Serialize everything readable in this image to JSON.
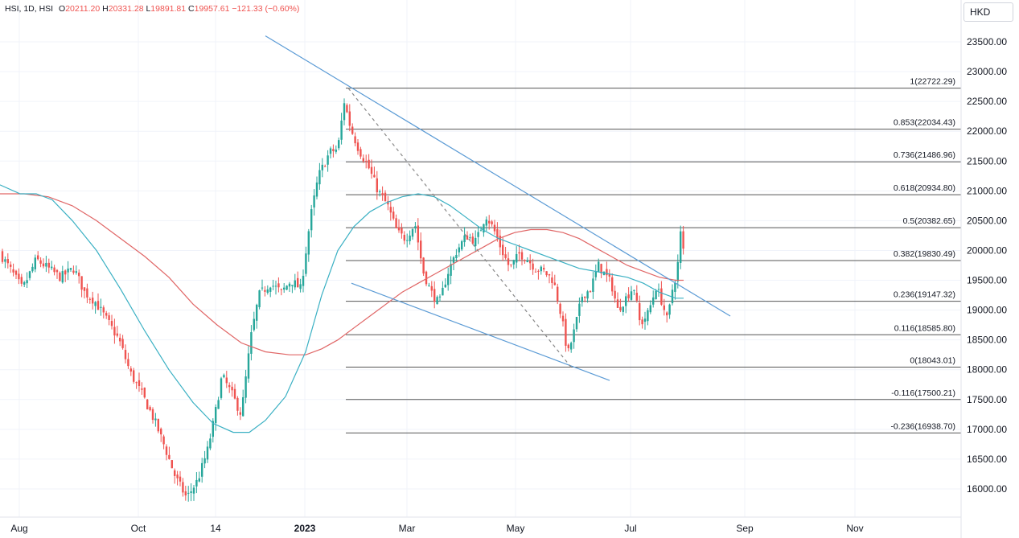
{
  "header": {
    "symbol": "HSI, 1D, HSI",
    "open_label": "O",
    "open": "20211.20",
    "high_label": "H",
    "high": "20331.28",
    "low_label": "L",
    "low": "19891.81",
    "close_label": "C",
    "close": "19957.61",
    "change": "−121.33 (−0.60%)"
  },
  "currency": "HKD",
  "colors": {
    "up": "#26a69a",
    "down": "#ef5350",
    "trend": "#5b9bd5",
    "ma_fast": "#3ab0c3",
    "ma_slow": "#e06666",
    "fib": "#555555",
    "grid": "#f0f3fa"
  },
  "chart_data": {
    "type": "candlestick",
    "ylim": [
      15600,
      23900
    ],
    "y_ticks": [
      "23500.00",
      "23000.00",
      "22500.00",
      "22000.00",
      "21500.00",
      "21000.00",
      "20500.00",
      "20000.00",
      "19500.00",
      "19000.00",
      "18500.00",
      "18000.00",
      "17500.00",
      "17000.00",
      "16500.00",
      "16000.00"
    ],
    "x_ticks": [
      {
        "label": "Aug",
        "x": 24,
        "bold": false
      },
      {
        "label": "Oct",
        "x": 172,
        "bold": false
      },
      {
        "label": "14",
        "x": 268,
        "bold": false
      },
      {
        "label": "2023",
        "x": 379,
        "bold": true
      },
      {
        "label": "Mar",
        "x": 506,
        "bold": false
      },
      {
        "label": "May",
        "x": 641,
        "bold": false
      },
      {
        "label": "Jul",
        "x": 784,
        "bold": false
      },
      {
        "label": "Sep",
        "x": 926,
        "bold": false
      },
      {
        "label": "Nov",
        "x": 1063,
        "bold": false
      }
    ],
    "fib_levels": [
      {
        "label": "1(22722.29)",
        "value": 22722.29
      },
      {
        "label": "0.853(22034.43)",
        "value": 22034.43
      },
      {
        "label": "0.736(21486.96)",
        "value": 21486.96
      },
      {
        "label": "0.618(20934.80)",
        "value": 20934.8
      },
      {
        "label": "0.5(20382.65)",
        "value": 20382.65
      },
      {
        "label": "0.382(19830.49)",
        "value": 19830.49
      },
      {
        "label": "0.236(19147.32)",
        "value": 19147.32
      },
      {
        "label": "0.116(18585.80)",
        "value": 18585.8
      },
      {
        "label": "0(18043.01)",
        "value": 18043.01
      },
      {
        "label": "-0.116(17500.21)",
        "value": 17500.21
      },
      {
        "label": "-0.236(16938.70)",
        "value": 16938.7
      }
    ],
    "close_path": [
      [
        0,
        19950
      ],
      [
        12,
        19700
      ],
      [
        28,
        19350
      ],
      [
        45,
        19850
      ],
      [
        60,
        19700
      ],
      [
        75,
        19550
      ],
      [
        92,
        19700
      ],
      [
        105,
        19300
      ],
      [
        118,
        19150
      ],
      [
        132,
        18850
      ],
      [
        148,
        18500
      ],
      [
        162,
        17950
      ],
      [
        178,
        17550
      ],
      [
        192,
        17150
      ],
      [
        205,
        16700
      ],
      [
        218,
        16200
      ],
      [
        232,
        15850
      ],
      [
        246,
        16150
      ],
      [
        258,
        16650
      ],
      [
        266,
        17150
      ],
      [
        276,
        17900
      ],
      [
        288,
        17600
      ],
      [
        300,
        17250
      ],
      [
        312,
        18550
      ],
      [
        322,
        19250
      ],
      [
        336,
        19450
      ],
      [
        350,
        19300
      ],
      [
        362,
        19500
      ],
      [
        374,
        19350
      ],
      [
        386,
        20550
      ],
      [
        396,
        21250
      ],
      [
        410,
        21650
      ],
      [
        420,
        21700
      ],
      [
        428,
        22500
      ],
      [
        436,
        22050
      ],
      [
        446,
        21700
      ],
      [
        458,
        21400
      ],
      [
        470,
        21000
      ],
      [
        482,
        20750
      ],
      [
        494,
        20300
      ],
      [
        504,
        20200
      ],
      [
        516,
        20450
      ],
      [
        526,
        19650
      ],
      [
        536,
        19300
      ],
      [
        546,
        19100
      ],
      [
        556,
        19600
      ],
      [
        568,
        20000
      ],
      [
        580,
        20250
      ],
      [
        592,
        20150
      ],
      [
        604,
        20600
      ],
      [
        614,
        20350
      ],
      [
        624,
        20000
      ],
      [
        634,
        19700
      ],
      [
        646,
        19950
      ],
      [
        656,
        19850
      ],
      [
        666,
        19700
      ],
      [
        676,
        19650
      ],
      [
        688,
        19500
      ],
      [
        698,
        18900
      ],
      [
        706,
        18250
      ],
      [
        714,
        18650
      ],
      [
        724,
        19250
      ],
      [
        734,
        19350
      ],
      [
        744,
        19750
      ],
      [
        752,
        19600
      ],
      [
        760,
        19450
      ],
      [
        768,
        19000
      ],
      [
        778,
        19200
      ],
      [
        788,
        19400
      ],
      [
        796,
        18750
      ],
      [
        806,
        18950
      ],
      [
        816,
        19400
      ],
      [
        824,
        19100
      ],
      [
        830,
        18800
      ],
      [
        836,
        19350
      ],
      [
        842,
        19650
      ],
      [
        846,
        20300
      ],
      [
        850,
        19960
      ]
    ],
    "ma_fast": [
      [
        0,
        21100
      ],
      [
        25,
        20950
      ],
      [
        45,
        20950
      ],
      [
        65,
        20850
      ],
      [
        90,
        20500
      ],
      [
        120,
        20000
      ],
      [
        150,
        19350
      ],
      [
        180,
        18650
      ],
      [
        210,
        18000
      ],
      [
        240,
        17450
      ],
      [
        265,
        17100
      ],
      [
        290,
        16950
      ],
      [
        310,
        16950
      ],
      [
        330,
        17150
      ],
      [
        355,
        17550
      ],
      [
        380,
        18300
      ],
      [
        400,
        19250
      ],
      [
        420,
        20000
      ],
      [
        440,
        20400
      ],
      [
        460,
        20650
      ],
      [
        480,
        20800
      ],
      [
        500,
        20900
      ],
      [
        520,
        20950
      ],
      [
        540,
        20900
      ],
      [
        560,
        20750
      ],
      [
        580,
        20550
      ],
      [
        600,
        20350
      ],
      [
        620,
        20200
      ],
      [
        640,
        20100
      ],
      [
        660,
        20000
      ],
      [
        680,
        19900
      ],
      [
        700,
        19800
      ],
      [
        720,
        19700
      ],
      [
        740,
        19650
      ],
      [
        760,
        19600
      ],
      [
        780,
        19550
      ],
      [
        800,
        19450
      ],
      [
        820,
        19300
      ],
      [
        840,
        19200
      ],
      [
        850,
        19200
      ]
    ],
    "ma_slow": [
      [
        0,
        20950
      ],
      [
        30,
        20950
      ],
      [
        60,
        20900
      ],
      [
        90,
        20750
      ],
      [
        120,
        20500
      ],
      [
        150,
        20200
      ],
      [
        180,
        19900
      ],
      [
        210,
        19550
      ],
      [
        240,
        19100
      ],
      [
        270,
        18750
      ],
      [
        300,
        18450
      ],
      [
        330,
        18300
      ],
      [
        360,
        18250
      ],
      [
        380,
        18250
      ],
      [
        400,
        18350
      ],
      [
        420,
        18500
      ],
      [
        440,
        18700
      ],
      [
        460,
        18900
      ],
      [
        480,
        19100
      ],
      [
        500,
        19300
      ],
      [
        520,
        19450
      ],
      [
        540,
        19600
      ],
      [
        560,
        19750
      ],
      [
        580,
        19900
      ],
      [
        600,
        20050
      ],
      [
        620,
        20200
      ],
      [
        640,
        20300
      ],
      [
        660,
        20350
      ],
      [
        680,
        20350
      ],
      [
        700,
        20300
      ],
      [
        720,
        20200
      ],
      [
        740,
        20050
      ],
      [
        760,
        19900
      ],
      [
        780,
        19750
      ],
      [
        800,
        19650
      ],
      [
        820,
        19550
      ],
      [
        840,
        19500
      ],
      [
        850,
        19500
      ]
    ],
    "trendlines": [
      {
        "name": "upper",
        "points": [
          [
            330,
            23600
          ],
          [
            908,
            18900
          ]
        ],
        "style": "solid"
      },
      {
        "name": "lower",
        "points": [
          [
            437,
            19450
          ],
          [
            758,
            17820
          ]
        ],
        "style": "solid"
      },
      {
        "name": "fib-diagonal",
        "points": [
          [
            433,
            22722.29
          ],
          [
            710,
            18043.01
          ]
        ],
        "style": "dashed"
      }
    ]
  }
}
